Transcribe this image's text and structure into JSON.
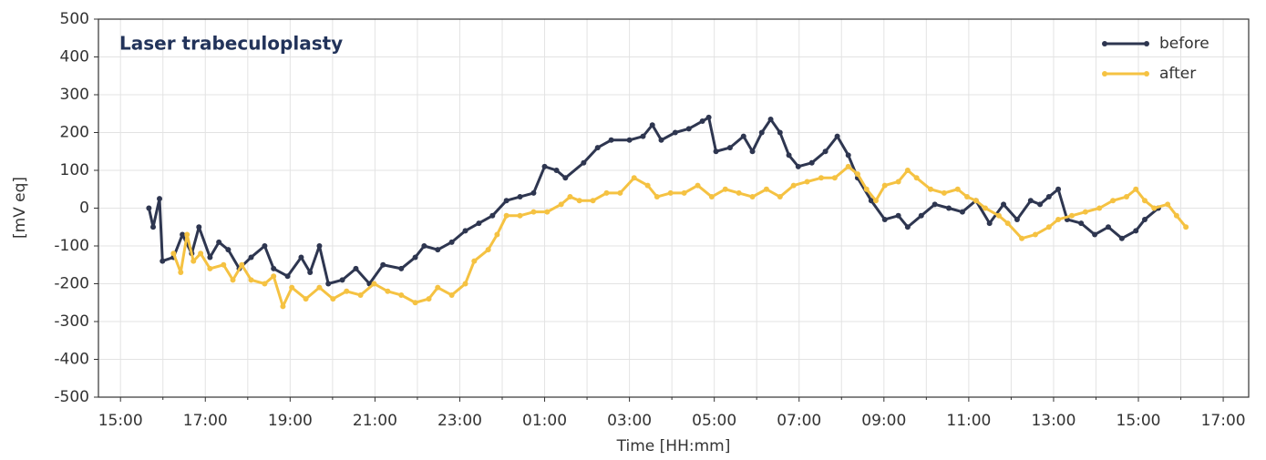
{
  "chart_data": {
    "type": "line",
    "title": "Laser trabeculoplasty",
    "xlabel": "Time [HH:mm]",
    "ylabel": "[mV eq]",
    "xlim": [
      14.48,
      41.6
    ],
    "xticks": [
      {
        "value": 15,
        "label": "15:00"
      },
      {
        "value": 17,
        "label": "17:00"
      },
      {
        "value": 19,
        "label": "19:00"
      },
      {
        "value": 21,
        "label": "21:00"
      },
      {
        "value": 23,
        "label": "23:00"
      },
      {
        "value": 25,
        "label": "01:00"
      },
      {
        "value": 27,
        "label": "03:00"
      },
      {
        "value": 29,
        "label": "05:00"
      },
      {
        "value": 31,
        "label": "07:00"
      },
      {
        "value": 33,
        "label": "09:00"
      },
      {
        "value": 35,
        "label": "11:00"
      },
      {
        "value": 37,
        "label": "13:00"
      },
      {
        "value": 39,
        "label": "15:00"
      },
      {
        "value": 41,
        "label": "17:00"
      }
    ],
    "xminorticks": [
      16,
      18,
      20,
      22,
      24,
      26,
      28,
      30,
      32,
      34,
      36,
      38,
      40
    ],
    "ylim": [
      -500,
      500
    ],
    "yticks": [
      -500,
      -400,
      -300,
      -200,
      -100,
      0,
      100,
      200,
      300,
      400,
      500
    ],
    "grid": true,
    "legend": "upper right",
    "series": [
      {
        "name": "before",
        "color": "#2e3650",
        "x": [
          15.67,
          15.77,
          15.92,
          15.99,
          16.25,
          16.46,
          16.68,
          16.85,
          17.11,
          17.32,
          17.54,
          17.8,
          18.08,
          18.4,
          18.61,
          18.94,
          19.26,
          19.47,
          19.69,
          19.9,
          20.23,
          20.55,
          20.87,
          21.19,
          21.62,
          21.95,
          22.16,
          22.48,
          22.81,
          23.13,
          23.45,
          23.77,
          24.1,
          24.42,
          24.74,
          25,
          25.28,
          25.49,
          25.92,
          26.25,
          26.57,
          27,
          27.32,
          27.54,
          27.75,
          28.08,
          28.4,
          28.72,
          28.87,
          29.04,
          29.37,
          29.69,
          29.9,
          30.12,
          30.33,
          30.55,
          30.76,
          30.98,
          31.3,
          31.62,
          31.9,
          32.16,
          32.38,
          32.7,
          33.02,
          33.34,
          33.56,
          33.88,
          34.2,
          34.53,
          34.85,
          35.17,
          35.49,
          35.82,
          36.14,
          36.46,
          36.68,
          36.89,
          37.11,
          37.32,
          37.65,
          37.97,
          38.29,
          38.61,
          38.94,
          39.15,
          39.47
        ],
        "values": [
          0,
          -50,
          25,
          -140,
          -130,
          -70,
          -120,
          -50,
          -130,
          -90,
          -110,
          -160,
          -130,
          -100,
          -160,
          -180,
          -130,
          -170,
          -100,
          -200,
          -190,
          -160,
          -200,
          -150,
          -160,
          -130,
          -100,
          -110,
          -90,
          -60,
          -40,
          -20,
          20,
          30,
          40,
          110,
          100,
          80,
          120,
          160,
          180,
          180,
          190,
          220,
          180,
          200,
          210,
          230,
          240,
          150,
          160,
          190,
          150,
          200,
          235,
          200,
          140,
          110,
          120,
          150,
          190,
          140,
          80,
          20,
          -30,
          -20,
          -50,
          -20,
          10,
          0,
          -10,
          20,
          -40,
          10,
          -30,
          20,
          10,
          30,
          50,
          -30,
          -40,
          -70,
          -50,
          -80,
          -60,
          -30,
          0
        ]
      },
      {
        "name": "after",
        "color": "#f5c242",
        "x": [
          16.25,
          16.42,
          16.57,
          16.72,
          16.89,
          17.11,
          17.43,
          17.65,
          17.86,
          18.08,
          18.4,
          18.61,
          18.83,
          19.04,
          19.37,
          19.69,
          20.01,
          20.33,
          20.66,
          20.98,
          21.3,
          21.62,
          21.95,
          22.27,
          22.48,
          22.81,
          23.13,
          23.34,
          23.67,
          23.88,
          24.1,
          24.42,
          24.74,
          25.06,
          25.39,
          25.6,
          25.82,
          26.14,
          26.46,
          26.78,
          27.11,
          27.43,
          27.65,
          27.97,
          28.29,
          28.61,
          28.94,
          29.26,
          29.58,
          29.9,
          30.23,
          30.55,
          30.87,
          31.19,
          31.52,
          31.84,
          32.16,
          32.38,
          32.59,
          32.81,
          33.02,
          33.34,
          33.56,
          33.77,
          34.1,
          34.42,
          34.74,
          34.96,
          35.17,
          35.39,
          35.71,
          35.92,
          36.25,
          36.57,
          36.89,
          37.11,
          37.43,
          37.75,
          38.08,
          38.4,
          38.72,
          38.94,
          39.15,
          39.37,
          39.69,
          39.9,
          40.12
        ],
        "values": [
          -120,
          -170,
          -70,
          -140,
          -120,
          -160,
          -150,
          -190,
          -150,
          -190,
          -200,
          -180,
          -260,
          -210,
          -240,
          -210,
          -240,
          -220,
          -230,
          -200,
          -220,
          -230,
          -250,
          -240,
          -210,
          -230,
          -200,
          -140,
          -110,
          -70,
          -20,
          -20,
          -10,
          -10,
          10,
          30,
          20,
          20,
          40,
          40,
          80,
          60,
          30,
          40,
          40,
          60,
          30,
          50,
          40,
          30,
          50,
          30,
          60,
          70,
          80,
          80,
          110,
          90,
          50,
          20,
          60,
          70,
          100,
          80,
          50,
          40,
          50,
          30,
          20,
          0,
          -20,
          -40,
          -80,
          -70,
          -50,
          -30,
          -20,
          -10,
          0,
          20,
          30,
          50,
          20,
          0,
          10,
          -20,
          -50
        ]
      }
    ]
  }
}
